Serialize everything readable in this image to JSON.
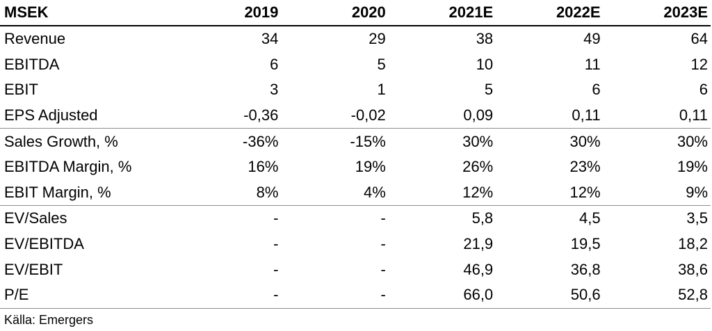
{
  "table": {
    "headers": [
      "MSEK",
      "2019",
      "2020",
      "2021E",
      "2022E",
      "2023E"
    ],
    "rows": [
      {
        "label": "Revenue",
        "values": [
          "34",
          "29",
          "38",
          "49",
          "64"
        ]
      },
      {
        "label": "EBITDA",
        "values": [
          "6",
          "5",
          "10",
          "11",
          "12"
        ]
      },
      {
        "label": "EBIT",
        "values": [
          "3",
          "1",
          "5",
          "6",
          "6"
        ]
      },
      {
        "label": "EPS Adjusted",
        "values": [
          "-0,36",
          "-0,02",
          "0,09",
          "0,11",
          "0,11"
        ]
      },
      {
        "label": "Sales Growth, %",
        "values": [
          "-36%",
          "-15%",
          "30%",
          "30%",
          "30%"
        ]
      },
      {
        "label": "EBITDA Margin, %",
        "values": [
          "16%",
          "19%",
          "26%",
          "23%",
          "19%"
        ]
      },
      {
        "label": "EBIT Margin, %",
        "values": [
          "8%",
          "4%",
          "12%",
          "12%",
          "9%"
        ]
      },
      {
        "label": "EV/Sales",
        "values": [
          "-",
          "-",
          "5,8",
          "4,5",
          "3,5"
        ]
      },
      {
        "label": "EV/EBITDA",
        "values": [
          "-",
          "-",
          "21,9",
          "19,5",
          "18,2"
        ]
      },
      {
        "label": "EV/EBIT",
        "values": [
          "-",
          "-",
          "46,9",
          "36,8",
          "38,6"
        ]
      },
      {
        "label": "P/E",
        "values": [
          "-",
          "-",
          "66,0",
          "50,6",
          "52,8"
        ]
      }
    ]
  },
  "source": "Källa: Emergers"
}
